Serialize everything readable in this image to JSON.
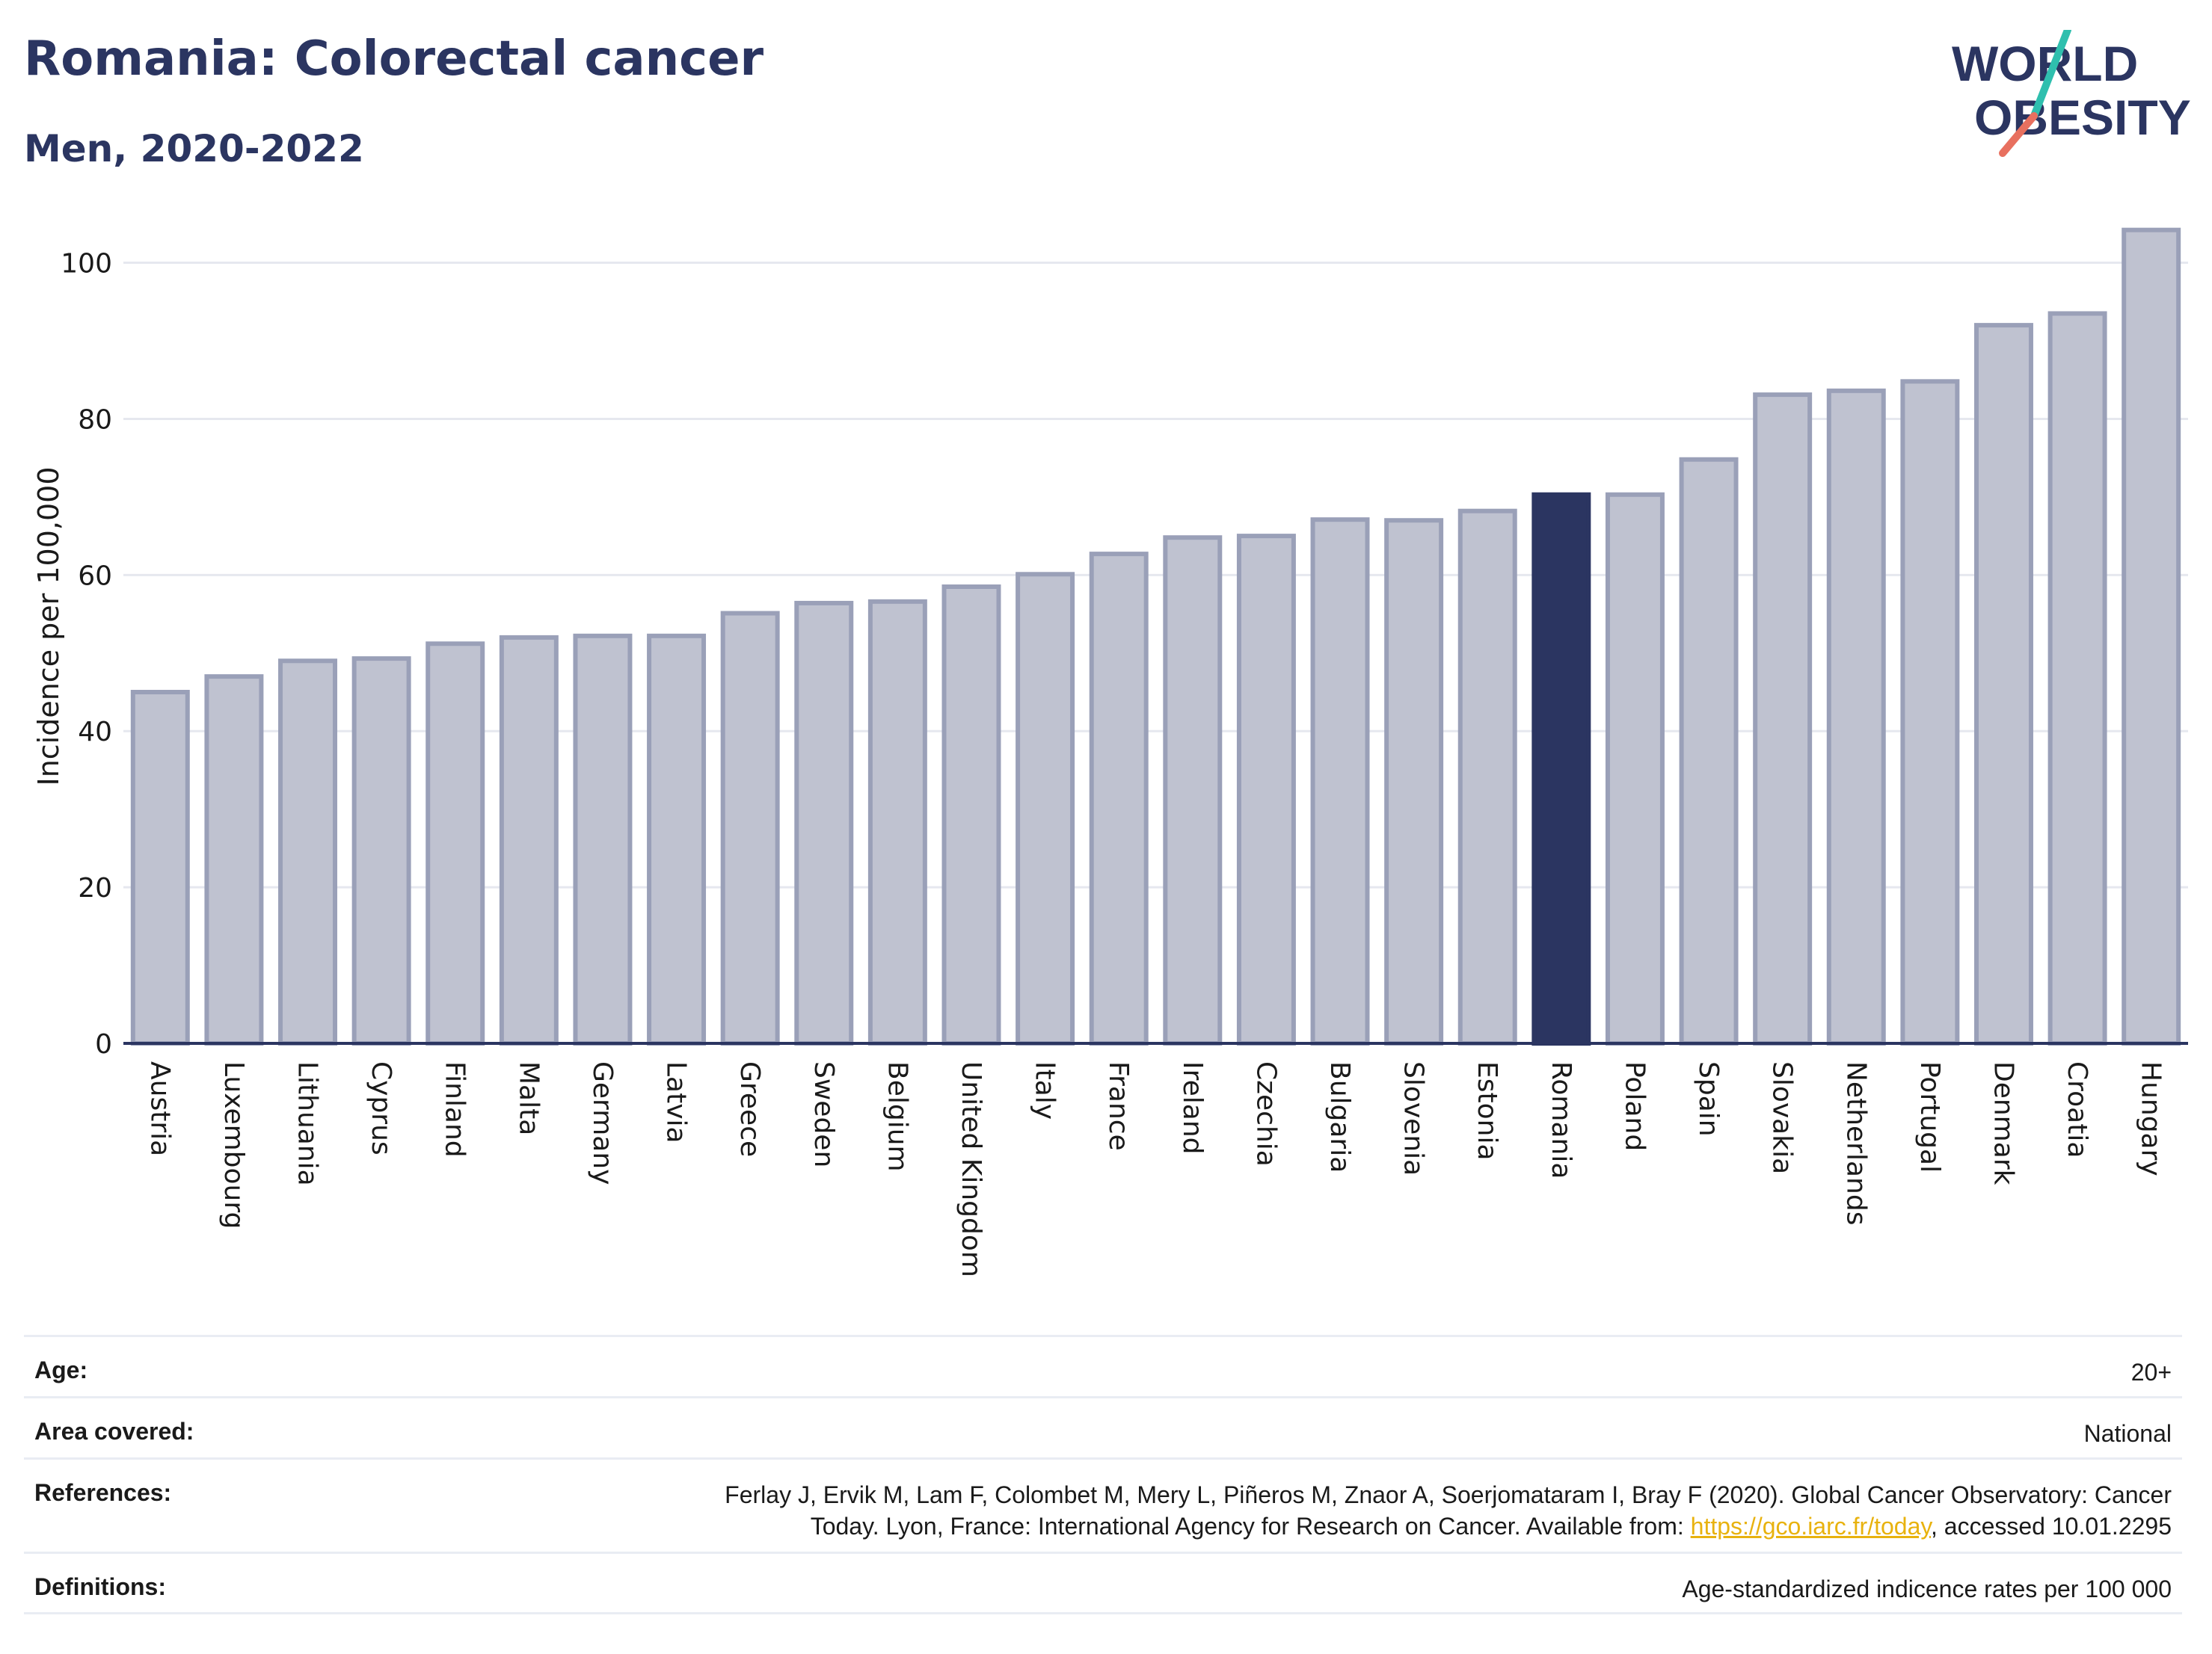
{
  "header": {
    "title": "Romania: Colorectal cancer",
    "subtitle": "Men, 2020-2022"
  },
  "logo": {
    "line1": "WORLD",
    "line2": "OBESITY",
    "accent_colors": [
      "#2fbfae",
      "#e8705f"
    ]
  },
  "chart_data": {
    "type": "bar",
    "title": "Romania: Colorectal cancer",
    "subtitle": "Men, 2020-2022",
    "ylabel": "Incidence per 100,000",
    "xlabel": "",
    "ylim": [
      0,
      108
    ],
    "yticks": [
      0,
      20,
      40,
      60,
      80,
      100
    ],
    "grid": true,
    "highlight": "Romania",
    "colors": {
      "bar": "#bfc2d0",
      "bar_edge": "#9aa0b8",
      "highlight": "#2b3561",
      "grid": "#e6e8ef",
      "axis": "#2b3561"
    },
    "categories": [
      "Austria",
      "Luxembourg",
      "Lithuania",
      "Cyprus",
      "Finland",
      "Malta",
      "Germany",
      "Latvia",
      "Greece",
      "Sweden",
      "Belgium",
      "United Kingdom",
      "Italy",
      "France",
      "Ireland",
      "Czechia",
      "Bulgaria",
      "Slovenia",
      "Estonia",
      "Romania",
      "Poland",
      "Spain",
      "Slovakia",
      "Netherlands",
      "Portugal",
      "Denmark",
      "Croatia",
      "Hungary"
    ],
    "values": [
      45.0,
      47.0,
      49.0,
      49.3,
      51.2,
      52.0,
      52.2,
      52.2,
      55.1,
      56.4,
      56.6,
      58.5,
      60.1,
      62.7,
      64.8,
      65.0,
      67.1,
      67.0,
      68.2,
      70.3,
      70.3,
      74.8,
      83.1,
      83.6,
      84.8,
      92.0,
      93.5,
      104.2
    ]
  },
  "meta": {
    "age_label": "Age:",
    "age_value": "20+",
    "area_label": "Area covered:",
    "area_value": "National",
    "references_label": "References:",
    "references_line1": "Ferlay J, Ervik M, Lam F, Colombet M, Mery L, Piñeros M, Znaor A, Soerjomataram I, Bray F (2020). Global Cancer Observatory: Cancer",
    "references_line2_prefix": "Today. Lyon, France: International Agency for Research on Cancer. Available from: ",
    "references_link": "https://gco.iarc.fr/today",
    "references_line2_suffix": ", accessed 10.01.2295",
    "definitions_label": "Definitions:",
    "definitions_value": "Age-standardized indicence rates per 100 000"
  }
}
